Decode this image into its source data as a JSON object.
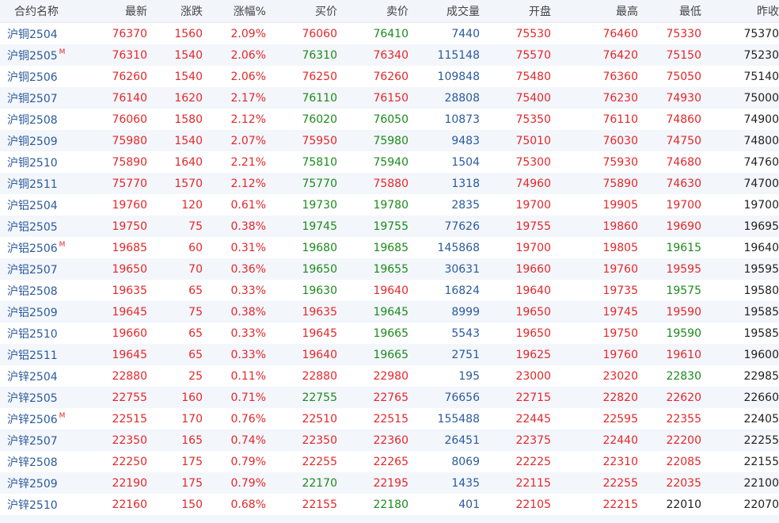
{
  "colors": {
    "red": "#e4272a",
    "green": "#1c8a1c",
    "blue": "#2a5a9e",
    "black": "#222222",
    "stripe": "#f3f6fb",
    "header_bg": "#f2f5fa"
  },
  "table": {
    "headers": {
      "name": "合约名称",
      "latest": "最新",
      "change": "涨跌",
      "change_pct": "涨幅%",
      "bid": "买价",
      "ask": "卖价",
      "volume": "成交量",
      "open": "开盘",
      "high": "最高",
      "low": "最低",
      "prev_close": "昨收"
    },
    "main_contract_marker": "M",
    "rows": [
      {
        "name": "沪铜2504",
        "main": false,
        "latest": "76370",
        "change": "1560",
        "change_pct": "2.09%",
        "bid": "76060",
        "ask": "76410",
        "volume": "7440",
        "open": "75530",
        "high": "76460",
        "low": "75330",
        "prev_close": "75370",
        "colors": {
          "bid": "red",
          "ask": "green",
          "low": "red"
        }
      },
      {
        "name": "沪铜2505",
        "main": true,
        "latest": "76310",
        "change": "1540",
        "change_pct": "2.06%",
        "bid": "76310",
        "ask": "76340",
        "volume": "115148",
        "open": "75570",
        "high": "76420",
        "low": "75150",
        "prev_close": "75230",
        "colors": {
          "bid": "green",
          "ask": "red",
          "low": "red"
        }
      },
      {
        "name": "沪铜2506",
        "main": false,
        "latest": "76260",
        "change": "1540",
        "change_pct": "2.06%",
        "bid": "76250",
        "ask": "76260",
        "volume": "109848",
        "open": "75480",
        "high": "76360",
        "low": "75050",
        "prev_close": "75140",
        "colors": {
          "bid": "red",
          "ask": "red",
          "low": "red"
        }
      },
      {
        "name": "沪铜2507",
        "main": false,
        "latest": "76140",
        "change": "1620",
        "change_pct": "2.17%",
        "bid": "76110",
        "ask": "76150",
        "volume": "28808",
        "open": "75400",
        "high": "76230",
        "low": "74930",
        "prev_close": "75000",
        "colors": {
          "bid": "green",
          "ask": "red",
          "low": "red"
        }
      },
      {
        "name": "沪铜2508",
        "main": false,
        "latest": "76060",
        "change": "1580",
        "change_pct": "2.12%",
        "bid": "76020",
        "ask": "76050",
        "volume": "10873",
        "open": "75350",
        "high": "76110",
        "low": "74860",
        "prev_close": "74900",
        "colors": {
          "bid": "green",
          "ask": "green",
          "low": "red"
        }
      },
      {
        "name": "沪铜2509",
        "main": false,
        "latest": "75980",
        "change": "1540",
        "change_pct": "2.07%",
        "bid": "75950",
        "ask": "75980",
        "volume": "9483",
        "open": "75010",
        "high": "76030",
        "low": "74750",
        "prev_close": "74800",
        "colors": {
          "bid": "red",
          "ask": "green",
          "low": "red"
        }
      },
      {
        "name": "沪铜2510",
        "main": false,
        "latest": "75890",
        "change": "1640",
        "change_pct": "2.21%",
        "bid": "75810",
        "ask": "75940",
        "volume": "1504",
        "open": "75300",
        "high": "75930",
        "low": "74680",
        "prev_close": "74760",
        "colors": {
          "bid": "green",
          "ask": "green",
          "low": "red"
        }
      },
      {
        "name": "沪铜2511",
        "main": false,
        "latest": "75770",
        "change": "1570",
        "change_pct": "2.12%",
        "bid": "75770",
        "ask": "75880",
        "volume": "1318",
        "open": "74960",
        "high": "75890",
        "low": "74630",
        "prev_close": "74700",
        "colors": {
          "bid": "green",
          "ask": "red",
          "low": "red"
        }
      },
      {
        "name": "沪铝2504",
        "main": false,
        "latest": "19760",
        "change": "120",
        "change_pct": "0.61%",
        "bid": "19730",
        "ask": "19780",
        "volume": "2835",
        "open": "19700",
        "high": "19905",
        "low": "19700",
        "prev_close": "19700",
        "colors": {
          "bid": "green",
          "ask": "green",
          "low": "red"
        }
      },
      {
        "name": "沪铝2505",
        "main": false,
        "latest": "19750",
        "change": "75",
        "change_pct": "0.38%",
        "bid": "19745",
        "ask": "19755",
        "volume": "77626",
        "open": "19755",
        "high": "19860",
        "low": "19690",
        "prev_close": "19695",
        "colors": {
          "bid": "green",
          "ask": "green",
          "low": "red"
        }
      },
      {
        "name": "沪铝2506",
        "main": true,
        "latest": "19685",
        "change": "60",
        "change_pct": "0.31%",
        "bid": "19680",
        "ask": "19685",
        "volume": "145868",
        "open": "19700",
        "high": "19805",
        "low": "19615",
        "prev_close": "19640",
        "colors": {
          "bid": "green",
          "ask": "green",
          "low": "green"
        }
      },
      {
        "name": "沪铝2507",
        "main": false,
        "latest": "19650",
        "change": "70",
        "change_pct": "0.36%",
        "bid": "19650",
        "ask": "19655",
        "volume": "30631",
        "open": "19660",
        "high": "19760",
        "low": "19595",
        "prev_close": "19595",
        "colors": {
          "bid": "green",
          "ask": "green",
          "low": "red"
        }
      },
      {
        "name": "沪铝2508",
        "main": false,
        "latest": "19635",
        "change": "65",
        "change_pct": "0.33%",
        "bid": "19630",
        "ask": "19640",
        "volume": "16824",
        "open": "19640",
        "high": "19735",
        "low": "19575",
        "prev_close": "19580",
        "colors": {
          "bid": "green",
          "ask": "red",
          "low": "green"
        }
      },
      {
        "name": "沪铝2509",
        "main": false,
        "latest": "19645",
        "change": "75",
        "change_pct": "0.38%",
        "bid": "19635",
        "ask": "19645",
        "volume": "8999",
        "open": "19650",
        "high": "19745",
        "low": "19590",
        "prev_close": "19585",
        "colors": {
          "bid": "red",
          "ask": "green",
          "low": "red"
        }
      },
      {
        "name": "沪铝2510",
        "main": false,
        "latest": "19660",
        "change": "65",
        "change_pct": "0.33%",
        "bid": "19645",
        "ask": "19665",
        "volume": "5543",
        "open": "19650",
        "high": "19750",
        "low": "19590",
        "prev_close": "19585",
        "colors": {
          "bid": "red",
          "ask": "green",
          "low": "green"
        }
      },
      {
        "name": "沪铝2511",
        "main": false,
        "latest": "19645",
        "change": "65",
        "change_pct": "0.33%",
        "bid": "19640",
        "ask": "19665",
        "volume": "2751",
        "open": "19625",
        "high": "19760",
        "low": "19610",
        "prev_close": "19600",
        "colors": {
          "bid": "red",
          "ask": "green",
          "low": "red"
        }
      },
      {
        "name": "沪锌2504",
        "main": false,
        "latest": "22880",
        "change": "25",
        "change_pct": "0.11%",
        "bid": "22880",
        "ask": "22980",
        "volume": "195",
        "open": "23000",
        "high": "23020",
        "low": "22830",
        "prev_close": "22985",
        "colors": {
          "bid": "red",
          "ask": "red",
          "low": "green"
        }
      },
      {
        "name": "沪锌2505",
        "main": false,
        "latest": "22755",
        "change": "160",
        "change_pct": "0.71%",
        "bid": "22755",
        "ask": "22765",
        "volume": "76656",
        "open": "22715",
        "high": "22820",
        "low": "22620",
        "prev_close": "22660",
        "colors": {
          "bid": "green",
          "ask": "red",
          "low": "red"
        }
      },
      {
        "name": "沪锌2506",
        "main": true,
        "latest": "22515",
        "change": "170",
        "change_pct": "0.76%",
        "bid": "22510",
        "ask": "22515",
        "volume": "155488",
        "open": "22445",
        "high": "22595",
        "low": "22355",
        "prev_close": "22405",
        "colors": {
          "bid": "red",
          "ask": "red",
          "low": "red"
        }
      },
      {
        "name": "沪锌2507",
        "main": false,
        "latest": "22350",
        "change": "165",
        "change_pct": "0.74%",
        "bid": "22350",
        "ask": "22360",
        "volume": "26451",
        "open": "22375",
        "high": "22440",
        "low": "22200",
        "prev_close": "22255",
        "colors": {
          "bid": "red",
          "ask": "red",
          "low": "red"
        }
      },
      {
        "name": "沪锌2508",
        "main": false,
        "latest": "22250",
        "change": "175",
        "change_pct": "0.79%",
        "bid": "22255",
        "ask": "22265",
        "volume": "8069",
        "open": "22225",
        "high": "22310",
        "low": "22085",
        "prev_close": "22155",
        "colors": {
          "bid": "red",
          "ask": "red",
          "low": "red"
        }
      },
      {
        "name": "沪锌2509",
        "main": false,
        "latest": "22190",
        "change": "175",
        "change_pct": "0.79%",
        "bid": "22170",
        "ask": "22195",
        "volume": "1435",
        "open": "22115",
        "high": "22255",
        "low": "22035",
        "prev_close": "22100",
        "colors": {
          "bid": "green",
          "ask": "red",
          "low": "red"
        }
      },
      {
        "name": "沪锌2510",
        "main": false,
        "latest": "22160",
        "change": "150",
        "change_pct": "0.68%",
        "bid": "22155",
        "ask": "22180",
        "volume": "401",
        "open": "22105",
        "high": "22215",
        "low": "22010",
        "prev_close": "22070",
        "colors": {
          "bid": "red",
          "ask": "green",
          "low": "black"
        }
      }
    ]
  }
}
